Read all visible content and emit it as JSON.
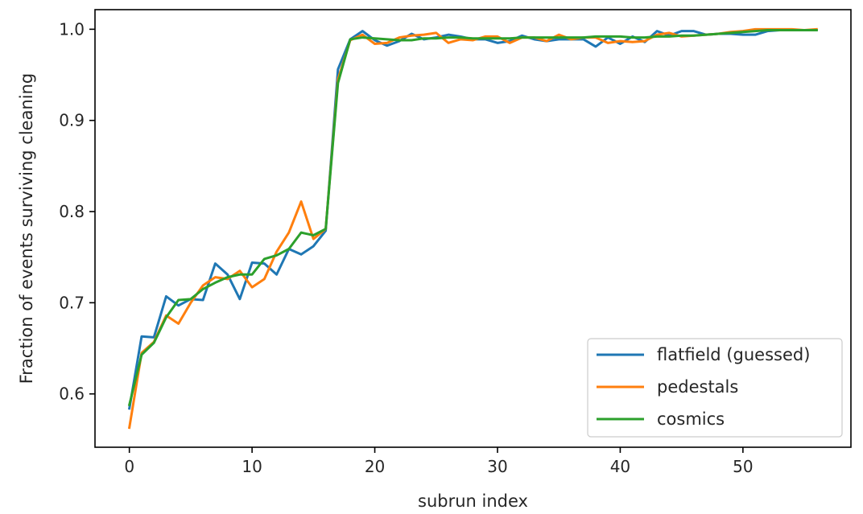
{
  "chart_data": {
    "type": "line",
    "title": "",
    "xlabel": "subrun index",
    "ylabel": "Fraction of events surviving cleaning",
    "xlim": [
      -2.8,
      58.8
    ],
    "ylim": [
      0.5415,
      1.0215
    ],
    "xticks": [
      0,
      10,
      20,
      30,
      40,
      50
    ],
    "xtick_labels": [
      "0",
      "10",
      "20",
      "30",
      "40",
      "50"
    ],
    "yticks": [
      0.6,
      0.7,
      0.8,
      0.9,
      1.0
    ],
    "ytick_labels": [
      "0.6",
      "0.7",
      "0.8",
      "0.9",
      "1.0"
    ],
    "grid": false,
    "legend_position": "lower-right",
    "x": [
      0,
      1,
      2,
      3,
      4,
      5,
      6,
      7,
      8,
      9,
      10,
      11,
      12,
      13,
      14,
      15,
      16,
      17,
      18,
      19,
      20,
      21,
      22,
      23,
      24,
      25,
      26,
      27,
      28,
      29,
      30,
      31,
      32,
      33,
      34,
      35,
      36,
      37,
      38,
      39,
      40,
      41,
      42,
      43,
      44,
      45,
      46,
      47,
      48,
      49,
      50,
      51,
      52,
      53,
      54,
      55,
      56
    ],
    "series": [
      {
        "name": "flatfield (guessed)",
        "color": "#1f77b4",
        "values": [
          0.584,
          0.663,
          0.662,
          0.707,
          0.697,
          0.704,
          0.703,
          0.743,
          0.731,
          0.704,
          0.744,
          0.743,
          0.731,
          0.759,
          0.753,
          0.762,
          0.779,
          0.956,
          0.989,
          0.998,
          0.988,
          0.982,
          0.987,
          0.995,
          0.989,
          0.991,
          0.994,
          0.992,
          0.989,
          0.989,
          0.985,
          0.987,
          0.993,
          0.989,
          0.987,
          0.989,
          0.989,
          0.989,
          0.981,
          0.991,
          0.984,
          0.992,
          0.986,
          0.998,
          0.993,
          0.998,
          0.998,
          0.994,
          0.995,
          0.995,
          0.994,
          0.994,
          0.998,
          0.999,
          0.999,
          0.999,
          0.999
        ]
      },
      {
        "name": "pedestals",
        "color": "#ff7f0e",
        "values": [
          0.563,
          0.645,
          0.657,
          0.686,
          0.677,
          0.7,
          0.719,
          0.728,
          0.726,
          0.735,
          0.717,
          0.726,
          0.756,
          0.777,
          0.811,
          0.77,
          0.781,
          0.945,
          0.988,
          0.994,
          0.984,
          0.985,
          0.991,
          0.993,
          0.994,
          0.996,
          0.985,
          0.989,
          0.988,
          0.992,
          0.992,
          0.985,
          0.991,
          0.991,
          0.987,
          0.994,
          0.989,
          0.991,
          0.991,
          0.985,
          0.987,
          0.986,
          0.987,
          0.994,
          0.996,
          0.992,
          0.993,
          0.994,
          0.995,
          0.997,
          0.998,
          1.0,
          1.0,
          1.0,
          1.0,
          0.999,
          1.0
        ]
      },
      {
        "name": "cosmics",
        "color": "#2ca02c",
        "values": [
          0.588,
          0.643,
          0.656,
          0.684,
          0.703,
          0.704,
          0.715,
          0.722,
          0.728,
          0.731,
          0.731,
          0.748,
          0.752,
          0.759,
          0.777,
          0.774,
          0.781,
          0.941,
          0.989,
          0.991,
          0.99,
          0.989,
          0.988,
          0.988,
          0.99,
          0.99,
          0.991,
          0.991,
          0.99,
          0.99,
          0.99,
          0.99,
          0.991,
          0.991,
          0.991,
          0.991,
          0.991,
          0.991,
          0.992,
          0.992,
          0.992,
          0.991,
          0.991,
          0.992,
          0.992,
          0.993,
          0.993,
          0.994,
          0.995,
          0.996,
          0.997,
          0.998,
          0.999,
          0.999,
          0.999,
          0.999,
          0.999
        ]
      }
    ]
  }
}
